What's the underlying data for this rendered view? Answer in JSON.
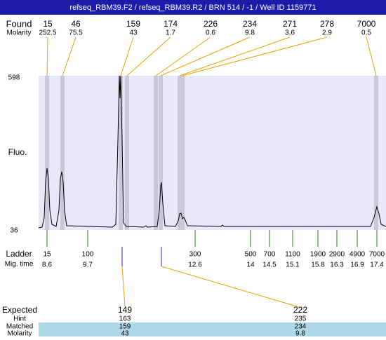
{
  "header": {
    "title": "refseq_RBM39.F2 / refseq_RBM39.R2 / BRN 514 / -1 / Well ID 1159771"
  },
  "found": {
    "label": "Found",
    "molarity_label": "Molarity",
    "peaks": [
      {
        "size": 15,
        "molarity": 252.5
      },
      {
        "size": 46,
        "molarity": 75.5
      },
      {
        "size": 159,
        "molarity": 43
      },
      {
        "size": 174,
        "molarity": 1.7
      },
      {
        "size": 226,
        "molarity": 0.6
      },
      {
        "size": 234,
        "molarity": 9.8
      },
      {
        "size": 271,
        "molarity": 3.6
      },
      {
        "size": 278,
        "molarity": 2.9
      },
      {
        "size": 7000,
        "molarity": 0.5
      }
    ]
  },
  "axis": {
    "label": "Fluo.",
    "ticks": [
      598,
      36
    ]
  },
  "ladder": {
    "label": "Ladder",
    "time_label": "Mig. time",
    "bands": [
      {
        "size": 15,
        "time": 8.6
      },
      {
        "size": 100,
        "time": 9.7
      },
      {
        "size": 300,
        "time": 12.6
      },
      {
        "size": 500,
        "time": 14
      },
      {
        "size": 700,
        "time": 14.5
      },
      {
        "size": 1100,
        "time": 15.1
      },
      {
        "size": 1900,
        "time": 15.8
      },
      {
        "size": 2900,
        "time": 16.3
      },
      {
        "size": 4900,
        "time": 16.9
      },
      {
        "size": 7000,
        "time": 17.4
      }
    ]
  },
  "expected": {
    "label": "Expected",
    "hint_label": "Hint",
    "matched_label": "Matched",
    "molarity_label": "Molarity",
    "items": [
      {
        "expected": 149,
        "hint": 163,
        "matched": 159,
        "molarity": 43
      },
      {
        "expected": 222,
        "hint": 235,
        "matched": 234,
        "molarity": 9.8
      }
    ]
  }
}
